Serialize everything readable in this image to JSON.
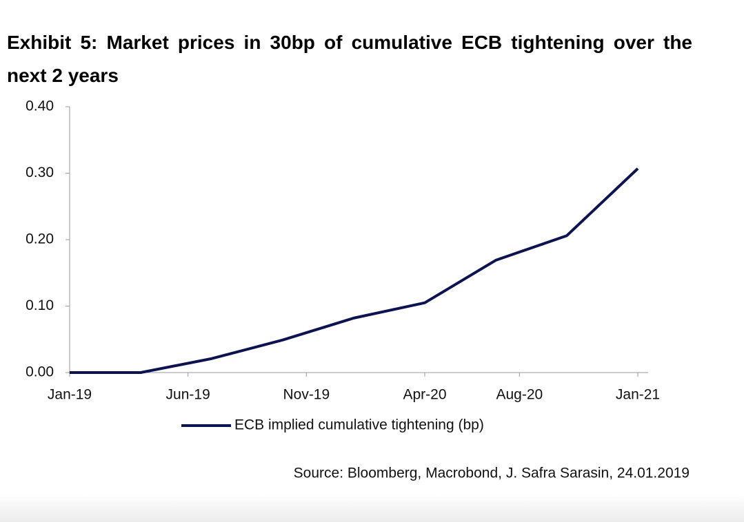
{
  "chart_data": {
    "type": "line",
    "title": "Exhibit 5: Market prices in 30bp of cumulative ECB tightening over the next 2 years",
    "x": [
      "2019-01",
      "2019-04",
      "2019-07",
      "2019-10",
      "2020-01",
      "2020-04",
      "2020-07",
      "2020-10",
      "2021-01"
    ],
    "series": [
      {
        "name": "ECB implied cumulative tightening (bp)",
        "color": "#0d1250",
        "values": [
          0,
          0,
          0.021,
          0.049,
          0.082,
          0.105,
          0.169,
          0.206,
          0.307
        ]
      }
    ],
    "xlim": [
      "2019-01",
      "2021-01"
    ],
    "xticks": [
      {
        "value": "2019-01",
        "label": "Jan-19"
      },
      {
        "value": "2019-06",
        "label": "Jun-19"
      },
      {
        "value": "2019-11",
        "label": "Nov-19"
      },
      {
        "value": "2020-04",
        "label": "Apr-20"
      },
      {
        "value": "2020-08",
        "label": "Aug-20"
      },
      {
        "value": "2021-01",
        "label": "Jan-21"
      }
    ],
    "ylim": [
      0,
      0.4
    ],
    "yticks": [
      {
        "value": 0,
        "label": "0.00"
      },
      {
        "value": 0.1,
        "label": "0.10"
      },
      {
        "value": 0.2,
        "label": "0.20"
      },
      {
        "value": 0.3,
        "label": "0.30"
      },
      {
        "value": 0.4,
        "label": "0.40"
      }
    ],
    "grid": false,
    "legend": "bottom",
    "source": "Source: Bloomberg, Macrobond, J. Safra Sarasin, 24.01.2019"
  }
}
